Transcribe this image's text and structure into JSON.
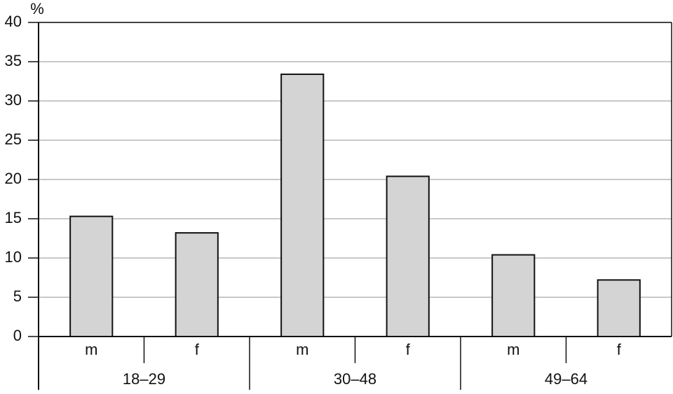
{
  "chart_data": {
    "type": "bar",
    "y_label": "%",
    "categories": [
      "m",
      "f",
      "m",
      "f",
      "m",
      "f"
    ],
    "groups": [
      "18–29",
      "30–48",
      "49–64"
    ],
    "values": [
      15.3,
      13.2,
      33.4,
      20.4,
      10.4,
      7.2
    ],
    "color": "#d4d4d4",
    "ylim": [
      0,
      40
    ],
    "yticks": [
      0,
      5,
      10,
      15,
      20,
      25,
      30,
      35,
      40
    ],
    "grid": true
  }
}
